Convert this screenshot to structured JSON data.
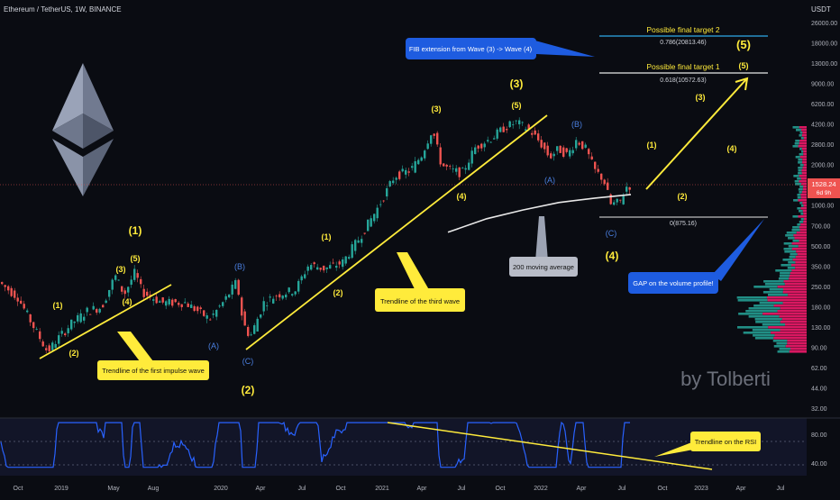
{
  "header": {
    "symbol": "Ethereum / TetherUS, 1W, BINANCE",
    "currency": "USDT"
  },
  "watermark": "by Tolberti",
  "price_axis": {
    "labels": [
      "26000.00",
      "18000.00",
      "13000.00",
      "9000.00",
      "6200.00",
      "4200.00",
      "2800.00",
      "2000.00",
      "1400.00",
      "1000.00",
      "700.00",
      "500.00",
      "350.00",
      "250.00",
      "180.00",
      "130.00",
      "90.00",
      "62.00",
      "44.00",
      "32.00"
    ],
    "current_price": "1528.24",
    "countdown": "6d 9h"
  },
  "rsi_axis": {
    "labels": [
      "80.00",
      "40.00"
    ]
  },
  "time_axis": {
    "labels": [
      "Oct",
      "2019",
      "May",
      "Aug",
      "2020",
      "Apr",
      "Jul",
      "Oct",
      "2021",
      "Apr",
      "Jul",
      "Oct",
      "2022",
      "Apr",
      "Jul",
      "Oct",
      "2023",
      "Apr",
      "Jul"
    ]
  },
  "annotations": {
    "first_trendline_note": "Trendline of the first impulse wave",
    "third_trendline_note": "Trendline of the third wave",
    "ma_note": "200 moving average",
    "fib_note": "FIB extension from Wave (3) -> Wave (4)",
    "gap_note": "GAP on the volume profile!",
    "rsi_note": "Trendline on the RSI"
  },
  "fib_levels": [
    {
      "title": "Possible final target 2",
      "label": "0.786(20813.46)"
    },
    {
      "title": "Possible final target 1",
      "label": "0.618(10572.63)"
    },
    {
      "title": "",
      "label": "0(875.16)"
    }
  ],
  "wave_labels": {
    "w1_small": "(1)",
    "w2_small": "(2)",
    "w3_small": "(3)",
    "w4_small": "(4)",
    "w5_small": "(5)",
    "w1_big": "(1)",
    "wA1": "(A)",
    "wB1": "(B)",
    "wC1": "(C)",
    "w2_big": "(2)",
    "w1_mid": "(1)",
    "w2_mid": "(2)",
    "w3_top": "(3)",
    "w4_mid": "(4)",
    "w5_top": "(5)",
    "w3_big": "(3)",
    "wA2": "(A)",
    "wB2": "(B)",
    "wC2": "(C)",
    "w4_big": "(4)",
    "p1": "(1)",
    "p2": "(2)",
    "p3": "(3)",
    "p4": "(4)",
    "p5": "(5)",
    "w5_big": "(5)"
  },
  "colors": {
    "up": "#26a69a",
    "down": "#ef5350",
    "yellow": "#ffeb3b",
    "blue_note": "#1e5ce0",
    "wave_blue": "#4a7fe0",
    "ma": "#ffffff",
    "rsi_line": "#2962ff"
  },
  "chart_data": {
    "type": "candlestick",
    "title": "Ethereum / TetherUS, 1W, BINANCE",
    "y_scale": "log",
    "ylim": [
      32,
      26000
    ],
    "current_price": 1528.24,
    "anchor_points": [
      {
        "x": 0,
        "price": 290
      },
      {
        "x": 22,
        "price": 220
      },
      {
        "x": 40,
        "price": 130
      },
      {
        "x": 55,
        "price": 85
      },
      {
        "x": 68,
        "price": 110
      },
      {
        "x": 82,
        "price": 140
      },
      {
        "x": 100,
        "price": 175
      },
      {
        "x": 115,
        "price": 185
      },
      {
        "x": 130,
        "price": 320
      },
      {
        "x": 140,
        "price": 230
      },
      {
        "x": 152,
        "price": 340
      },
      {
        "x": 160,
        "price": 240
      },
      {
        "x": 182,
        "price": 200
      },
      {
        "x": 208,
        "price": 200
      },
      {
        "x": 235,
        "price": 150
      },
      {
        "x": 252,
        "price": 210
      },
      {
        "x": 265,
        "price": 290
      },
      {
        "x": 272,
        "price": 140
      },
      {
        "x": 280,
        "price": 110
      },
      {
        "x": 295,
        "price": 200
      },
      {
        "x": 310,
        "price": 230
      },
      {
        "x": 330,
        "price": 250
      },
      {
        "x": 345,
        "price": 390
      },
      {
        "x": 362,
        "price": 360
      },
      {
        "x": 382,
        "price": 400
      },
      {
        "x": 400,
        "price": 600
      },
      {
        "x": 420,
        "price": 1000
      },
      {
        "x": 440,
        "price": 1800
      },
      {
        "x": 458,
        "price": 2000
      },
      {
        "x": 470,
        "price": 2600
      },
      {
        "x": 482,
        "price": 4100
      },
      {
        "x": 492,
        "price": 2200
      },
      {
        "x": 502,
        "price": 2000
      },
      {
        "x": 515,
        "price": 1900
      },
      {
        "x": 530,
        "price": 3000
      },
      {
        "x": 548,
        "price": 3500
      },
      {
        "x": 562,
        "price": 4200
      },
      {
        "x": 575,
        "price": 4600
      },
      {
        "x": 590,
        "price": 4000
      },
      {
        "x": 602,
        "price": 3200
      },
      {
        "x": 612,
        "price": 2500
      },
      {
        "x": 622,
        "price": 2900
      },
      {
        "x": 632,
        "price": 2600
      },
      {
        "x": 642,
        "price": 3400
      },
      {
        "x": 652,
        "price": 2900
      },
      {
        "x": 662,
        "price": 2000
      },
      {
        "x": 672,
        "price": 1700
      },
      {
        "x": 680,
        "price": 1100
      },
      {
        "x": 690,
        "price": 1150
      },
      {
        "x": 698,
        "price": 1528
      }
    ],
    "moving_average_200": [
      {
        "x": 497,
        "price": 680
      },
      {
        "x": 540,
        "price": 860
      },
      {
        "x": 580,
        "price": 1000
      },
      {
        "x": 620,
        "price": 1140
      },
      {
        "x": 660,
        "price": 1230
      },
      {
        "x": 700,
        "price": 1310
      }
    ],
    "fib_levels": [
      {
        "ratio": 0.786,
        "price": 20813.46
      },
      {
        "ratio": 0.618,
        "price": 10572.63
      },
      {
        "ratio": 0,
        "price": 875.16
      }
    ],
    "rsi_axis_labels": [
      80,
      40
    ]
  }
}
